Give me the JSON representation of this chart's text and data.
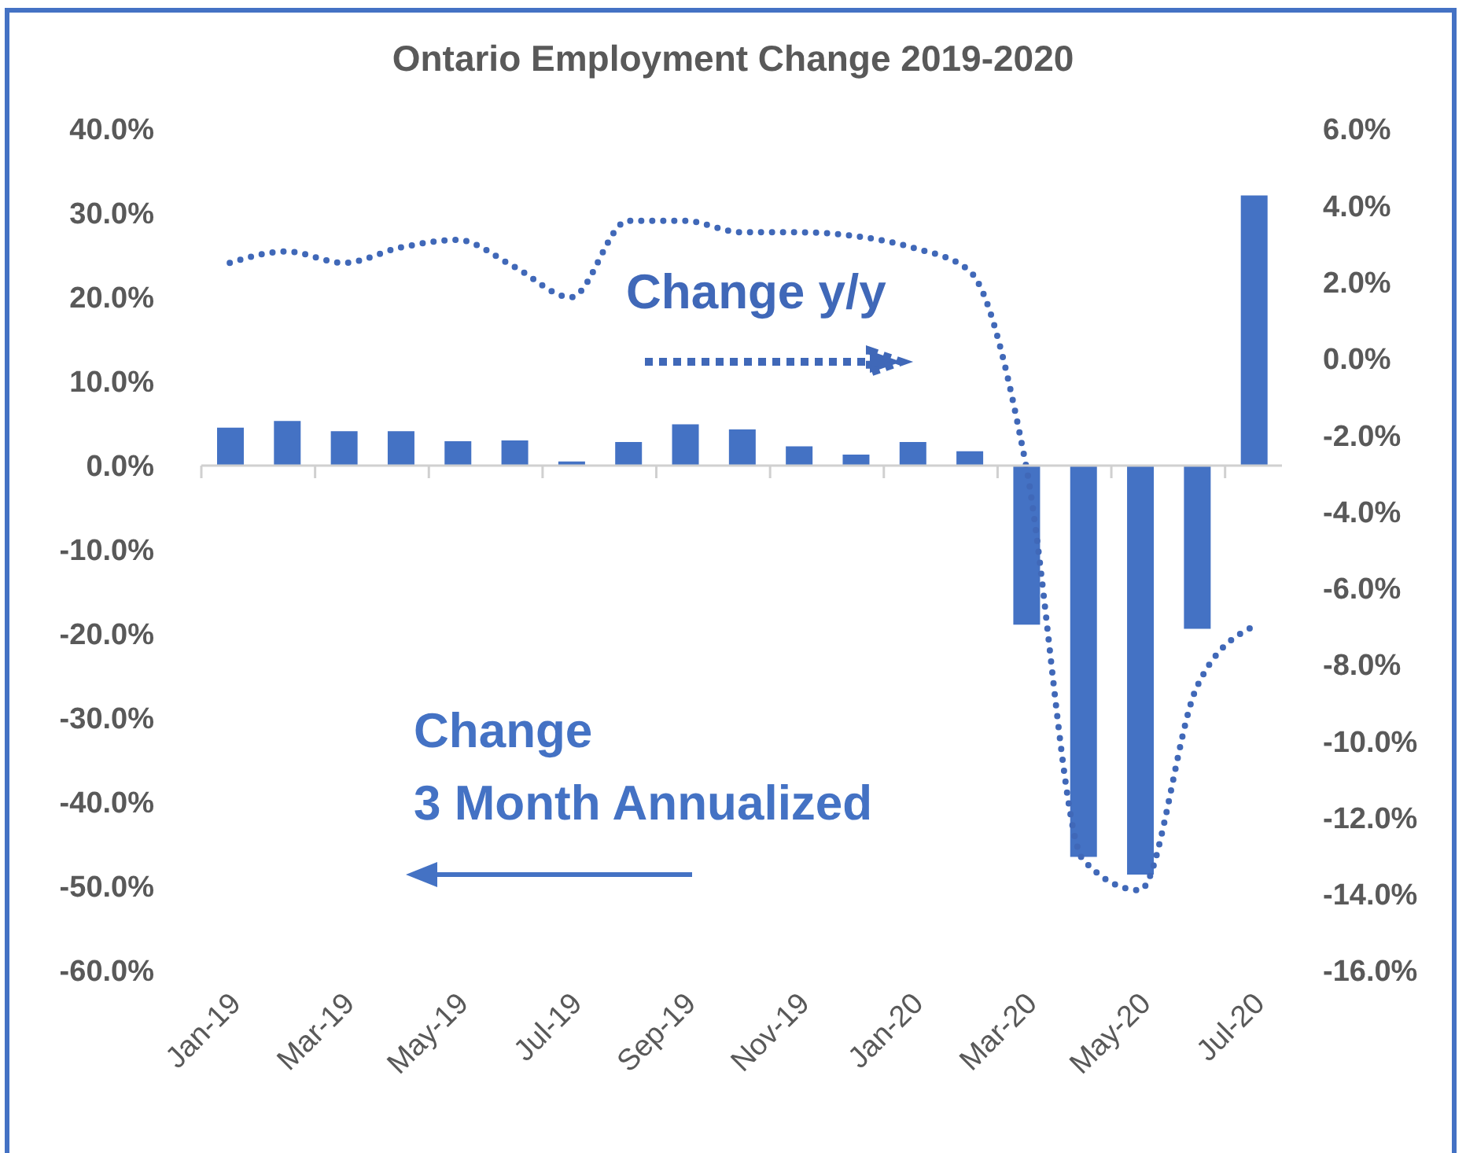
{
  "chart_data": {
    "type": "bar",
    "title": "Ontario Employment Change 2019-2020",
    "categories": [
      "Jan-19",
      null,
      "Mar-19",
      null,
      "May-19",
      null,
      "Jul-19",
      null,
      "Sep-19",
      null,
      "Nov-19",
      null,
      "Jan-20",
      null,
      "Mar-20",
      null,
      "May-20",
      null,
      "Jul-20"
    ],
    "series": [
      {
        "name": "Change\n3 Month Annualized",
        "color": "#4472c4",
        "values": [
          4.5,
          5.3,
          4.1,
          4.1,
          2.9,
          3.0,
          0.5,
          2.8,
          4.9,
          4.3,
          2.3,
          1.3,
          2.8,
          1.7,
          -18.9,
          -46.5,
          -48.6,
          -19.4,
          32.1
        ]
      },
      {
        "name": "Change y/y",
        "type": "line",
        "axis": "y2",
        "color": "#4068b8",
        "line_style": "dotted",
        "values": [
          2.5,
          2.8,
          2.5,
          2.9,
          3.1,
          2.4,
          1.6,
          3.6,
          3.6,
          3.3,
          3.3,
          3.2,
          2.9,
          2.3,
          -2.8,
          -13.1,
          -13.9,
          -8.6,
          -7.0
        ]
      }
    ],
    "ylim": [
      -60,
      40
    ],
    "yticks": [
      {
        "value": 40,
        "label": "40.0%"
      },
      {
        "value": 30,
        "label": "30.0%"
      },
      {
        "value": 20,
        "label": "20.0%"
      },
      {
        "value": 10,
        "label": "10.0%"
      },
      {
        "value": 0,
        "label": "0.0%"
      },
      {
        "value": -10,
        "label": "-10.0%"
      },
      {
        "value": -20,
        "label": "-20.0%"
      },
      {
        "value": -30,
        "label": "-30.0%"
      },
      {
        "value": -40,
        "label": "-40.0%"
      },
      {
        "value": -50,
        "label": "-50.0%"
      },
      {
        "value": -60,
        "label": "-60.0%"
      }
    ],
    "y2lim": [
      -16,
      6
    ],
    "y2ticks": [
      {
        "value": 6,
        "label": "6.0%"
      },
      {
        "value": 4,
        "label": "4.0%"
      },
      {
        "value": 2,
        "label": "2.0%"
      },
      {
        "value": 0,
        "label": "0.0%"
      },
      {
        "value": -2,
        "label": "-2.0%"
      },
      {
        "value": -4,
        "label": "-4.0%"
      },
      {
        "value": -6,
        "label": "-6.0%"
      },
      {
        "value": -8,
        "label": "-8.0%"
      },
      {
        "value": -10,
        "label": "-10.0%"
      },
      {
        "value": -12,
        "label": "-12.0%"
      },
      {
        "value": -14,
        "label": "-14.0%"
      },
      {
        "value": -16,
        "label": "-16.0%"
      }
    ]
  }
}
